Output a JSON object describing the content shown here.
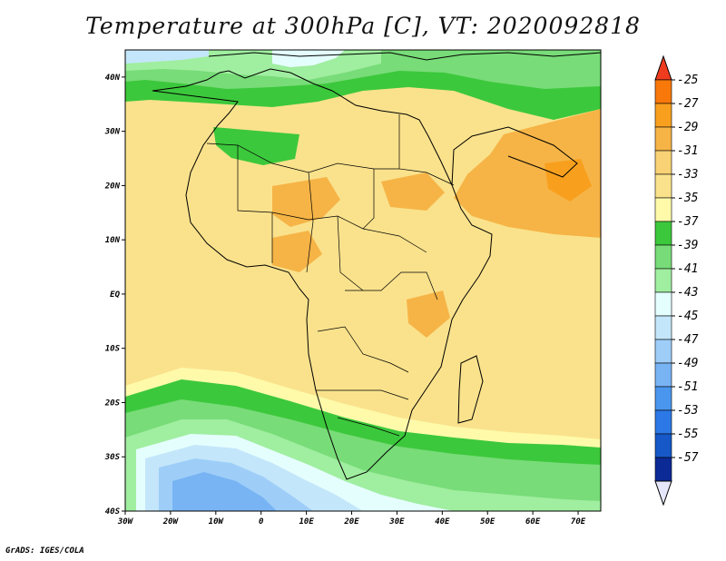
{
  "title": "Temperature at 300hPa [C], VT: 2020092818",
  "credit": "GrADS: IGES/COLA",
  "map": {
    "lon_ticks": [
      {
        "value": -30,
        "label": "30W"
      },
      {
        "value": -20,
        "label": "20W"
      },
      {
        "value": -10,
        "label": "10W"
      },
      {
        "value": 0,
        "label": "0"
      },
      {
        "value": 10,
        "label": "10E"
      },
      {
        "value": 20,
        "label": "20E"
      },
      {
        "value": 30,
        "label": "30E"
      },
      {
        "value": 40,
        "label": "40E"
      },
      {
        "value": 50,
        "label": "50E"
      },
      {
        "value": 60,
        "label": "60E"
      },
      {
        "value": 70,
        "label": "70E"
      }
    ],
    "lat_ticks": [
      {
        "value": 40,
        "label": "40N"
      },
      {
        "value": 30,
        "label": "30N"
      },
      {
        "value": 20,
        "label": "20N"
      },
      {
        "value": 10,
        "label": "10N"
      },
      {
        "value": 0,
        "label": "EQ"
      },
      {
        "value": -10,
        "label": "10S"
      },
      {
        "value": -20,
        "label": "20S"
      },
      {
        "value": -30,
        "label": "30S"
      },
      {
        "value": -40,
        "label": "40S"
      }
    ],
    "lon_range": [
      -30,
      75
    ],
    "lat_range": [
      -40,
      45
    ]
  },
  "colorbar": {
    "labels": [
      "-25",
      "-27",
      "-29",
      "-31",
      "-33",
      "-35",
      "-37",
      "-39",
      "-41",
      "-43",
      "-45",
      "-47",
      "-49",
      "-51",
      "-53",
      "-55",
      "-57"
    ],
    "colors": [
      "#f03c1e",
      "#f8780a",
      "#f8a01e",
      "#f6b446",
      "#f8d274",
      "#fae28c",
      "#fefaaa",
      "#3cc83c",
      "#78dc78",
      "#a0eea0",
      "#e4fefe",
      "#c4e6fa",
      "#9ecef8",
      "#78b4f4",
      "#4a96ee",
      "#2c78e6",
      "#1658c8",
      "#0c2a96",
      "#e6e6fa"
    ]
  }
}
